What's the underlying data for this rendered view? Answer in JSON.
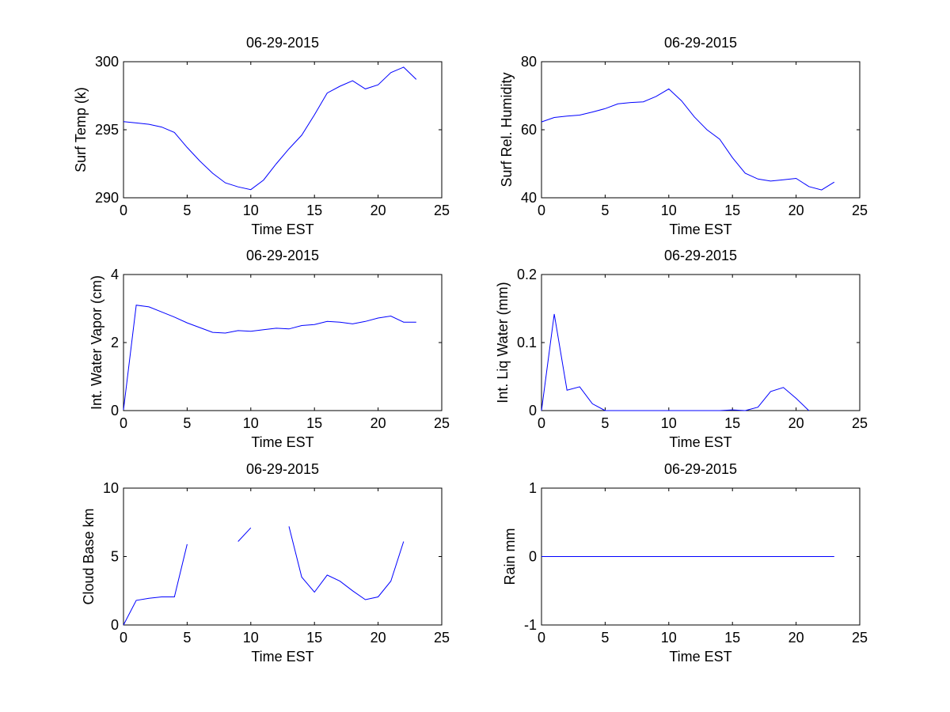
{
  "chart_data": [
    {
      "type": "line",
      "title": "06-29-2015",
      "xlabel": "Time EST",
      "ylabel": "Surf Temp (k)",
      "xlim": [
        0,
        25
      ],
      "ylim": [
        290,
        300
      ],
      "xticks": [
        0,
        5,
        10,
        15,
        20,
        25
      ],
      "yticks": [
        290,
        295,
        300
      ],
      "x": [
        0,
        1,
        2,
        3,
        4,
        5,
        6,
        7,
        8,
        9,
        10,
        11,
        12,
        13,
        14,
        15,
        16,
        17,
        18,
        19,
        20,
        21,
        22,
        23
      ],
      "y": [
        295.6,
        295.5,
        295.4,
        295.2,
        294.8,
        293.7,
        292.7,
        291.8,
        291.1,
        290.8,
        290.6,
        291.3,
        292.5,
        293.6,
        294.6,
        296.1,
        297.7,
        298.2,
        298.6,
        298.0,
        298.3,
        299.2,
        299.6,
        298.7
      ]
    },
    {
      "type": "line",
      "title": "06-29-2015",
      "xlabel": "Time EST",
      "ylabel": "Surf Rel. Humidity",
      "xlim": [
        0,
        25
      ],
      "ylim": [
        40,
        80
      ],
      "xticks": [
        0,
        5,
        10,
        15,
        20,
        25
      ],
      "yticks": [
        40,
        60,
        80
      ],
      "x": [
        0,
        1,
        2,
        3,
        4,
        5,
        6,
        7,
        8,
        9,
        10,
        11,
        12,
        13,
        14,
        15,
        16,
        17,
        18,
        19,
        20,
        21,
        22,
        23
      ],
      "y": [
        62.3,
        63.6,
        64.0,
        64.3,
        65.2,
        66.2,
        67.6,
        68.0,
        68.2,
        69.8,
        72.0,
        68.5,
        63.8,
        60.0,
        57.2,
        51.8,
        47.2,
        45.5,
        44.9,
        45.3,
        45.7,
        43.3,
        42.3,
        44.6
      ]
    },
    {
      "type": "line",
      "title": "06-29-2015",
      "xlabel": "Time EST",
      "ylabel": "Int. Water Vapor (cm)",
      "xlim": [
        0,
        25
      ],
      "ylim": [
        0,
        4
      ],
      "xticks": [
        0,
        5,
        10,
        15,
        20,
        25
      ],
      "yticks": [
        0,
        2,
        4
      ],
      "x": [
        0,
        1,
        2,
        3,
        4,
        5,
        6,
        7,
        8,
        9,
        10,
        11,
        12,
        13,
        14,
        15,
        16,
        17,
        18,
        19,
        20,
        21,
        22,
        23
      ],
      "y": [
        0.02,
        3.1,
        3.05,
        2.9,
        2.75,
        2.58,
        2.44,
        2.3,
        2.28,
        2.35,
        2.33,
        2.38,
        2.42,
        2.4,
        2.5,
        2.53,
        2.62,
        2.6,
        2.55,
        2.62,
        2.72,
        2.78,
        2.6,
        2.6
      ]
    },
    {
      "type": "line",
      "title": "06-29-2015",
      "xlabel": "Time EST",
      "ylabel": "Int. Liq Water (mm)",
      "xlim": [
        0,
        25
      ],
      "ylim": [
        0,
        0.2
      ],
      "xticks": [
        0,
        5,
        10,
        15,
        20,
        25
      ],
      "yticks": [
        0,
        0.1,
        0.2
      ],
      "x": [
        0,
        1,
        2,
        3,
        4,
        5,
        6,
        7,
        8,
        9,
        10,
        11,
        12,
        13,
        14,
        15,
        16,
        17,
        18,
        19,
        20,
        21
      ],
      "y": [
        0.0,
        0.142,
        0.03,
        0.035,
        0.01,
        0.0,
        0,
        0,
        0,
        0,
        0,
        0,
        0,
        0,
        0,
        0.001,
        0.0,
        0.005,
        0.028,
        0.034,
        0.018,
        0.0
      ]
    },
    {
      "type": "line",
      "title": "06-29-2015",
      "xlabel": "Time EST",
      "ylabel": "Cloud Base km",
      "xlim": [
        0,
        25
      ],
      "ylim": [
        0,
        10
      ],
      "xticks": [
        0,
        5,
        10,
        15,
        20,
        25
      ],
      "yticks": [
        0,
        5,
        10
      ],
      "x": [
        0,
        1,
        2,
        3,
        4,
        5,
        6,
        7,
        8,
        9,
        10,
        11,
        12,
        13,
        14,
        15,
        16,
        17,
        18,
        19,
        20,
        21,
        22
      ],
      "y": [
        0.0,
        1.8,
        1.95,
        2.05,
        2.05,
        5.9,
        null,
        null,
        null,
        6.1,
        7.1,
        null,
        null,
        7.2,
        3.5,
        2.4,
        3.65,
        3.2,
        2.5,
        1.85,
        2.05,
        3.2,
        6.1
      ]
    },
    {
      "type": "line",
      "title": "06-29-2015",
      "xlabel": "Time EST",
      "ylabel": "Rain mm",
      "xlim": [
        0,
        25
      ],
      "ylim": [
        -1,
        1
      ],
      "xticks": [
        0,
        5,
        10,
        15,
        20,
        25
      ],
      "yticks": [
        -1,
        0,
        1
      ],
      "x": [
        0,
        23
      ],
      "y": [
        0,
        0
      ]
    }
  ]
}
